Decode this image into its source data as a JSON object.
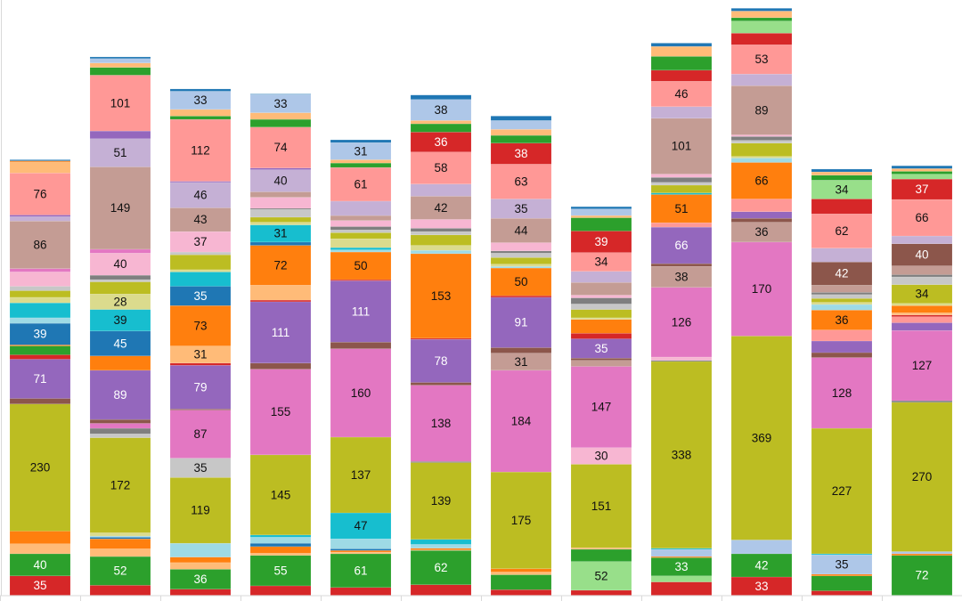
{
  "chart_data": {
    "type": "bar",
    "stacked": true,
    "title": "",
    "xlabel": "",
    "ylabel": "",
    "ylim": [
      0,
      1077
    ],
    "grid": false,
    "legend": "none",
    "label_min_value": 28,
    "palette": [
      "#1f77b4",
      "#aec7e8",
      "#ff7f0e",
      "#ffbb78",
      "#2ca02c",
      "#98df8a",
      "#d62728",
      "#ff9896",
      "#9467bd",
      "#c5b0d5",
      "#8c564b",
      "#c49c94",
      "#e377c2",
      "#f7b6d2",
      "#7f7f7f",
      "#c7c7c7",
      "#bcbd22",
      "#dbdb8d",
      "#17becf",
      "#9edae5"
    ],
    "light_label_colors": [
      "#1f77b4",
      "#2ca02c",
      "#d62728",
      "#9467bd",
      "#8c564b"
    ],
    "series_count": 47,
    "bars": [
      [
        [
          0,
          2
        ],
        [
          2,
          2
        ],
        [
          3,
          20
        ],
        [
          7,
          76
        ],
        [
          8,
          3
        ],
        [
          9,
          8
        ],
        [
          11,
          86
        ],
        [
          12,
          6
        ],
        [
          13,
          26
        ],
        [
          15,
          8
        ],
        [
          16,
          12
        ],
        [
          17,
          10
        ],
        [
          18,
          27
        ],
        [
          19,
          10
        ],
        [
          20,
          39
        ],
        [
          22,
          2
        ],
        [
          24,
          16
        ],
        [
          26,
          8
        ],
        [
          28,
          71
        ],
        [
          30,
          10
        ],
        [
          36,
          230
        ],
        [
          42,
          23
        ],
        [
          43,
          18
        ],
        [
          44,
          40
        ],
        [
          46,
          35
        ]
      ],
      [
        [
          0,
          3
        ],
        [
          1,
          8
        ],
        [
          3,
          8
        ],
        [
          4,
          14
        ],
        [
          7,
          101
        ],
        [
          8,
          14
        ],
        [
          9,
          51
        ],
        [
          11,
          149
        ],
        [
          12,
          7
        ],
        [
          13,
          40
        ],
        [
          14,
          8
        ],
        [
          15,
          4
        ],
        [
          16,
          22
        ],
        [
          17,
          28
        ],
        [
          18,
          39
        ],
        [
          20,
          45
        ],
        [
          22,
          26
        ],
        [
          28,
          89
        ],
        [
          30,
          7
        ],
        [
          32,
          9
        ],
        [
          34,
          10
        ],
        [
          35,
          7
        ],
        [
          36,
          172
        ],
        [
          37,
          6
        ],
        [
          39,
          2
        ],
        [
          40,
          3
        ],
        [
          42,
          18
        ],
        [
          43,
          14
        ],
        [
          44,
          52
        ],
        [
          46,
          18
        ]
      ],
      [
        [
          0,
          4
        ],
        [
          1,
          33
        ],
        [
          3,
          12
        ],
        [
          4,
          6
        ],
        [
          7,
          112
        ],
        [
          8,
          2
        ],
        [
          9,
          46
        ],
        [
          11,
          43
        ],
        [
          13,
          37
        ],
        [
          15,
          5
        ],
        [
          16,
          27
        ],
        [
          17,
          4
        ],
        [
          18,
          26
        ],
        [
          20,
          35
        ],
        [
          22,
          73
        ],
        [
          23,
          31
        ],
        [
          26,
          4
        ],
        [
          28,
          79
        ],
        [
          30,
          2
        ],
        [
          32,
          87
        ],
        [
          35,
          35
        ],
        [
          36,
          119
        ],
        [
          39,
          25
        ],
        [
          42,
          10
        ],
        [
          43,
          12
        ],
        [
          44,
          36
        ],
        [
          46,
          11
        ]
      ],
      [
        [
          0,
          1
        ],
        [
          1,
          33
        ],
        [
          3,
          12
        ],
        [
          4,
          14
        ],
        [
          7,
          74
        ],
        [
          8,
          3
        ],
        [
          9,
          40
        ],
        [
          11,
          10
        ],
        [
          13,
          20
        ],
        [
          14,
          2
        ],
        [
          15,
          14
        ],
        [
          16,
          9
        ],
        [
          17,
          5
        ],
        [
          18,
          31
        ],
        [
          20,
          6
        ],
        [
          22,
          72
        ],
        [
          23,
          27
        ],
        [
          26,
          3
        ],
        [
          28,
          111
        ],
        [
          30,
          11
        ],
        [
          32,
          155
        ],
        [
          36,
          145
        ],
        [
          38,
          4
        ],
        [
          39,
          11
        ],
        [
          40,
          6
        ],
        [
          42,
          12
        ],
        [
          43,
          4
        ],
        [
          44,
          55
        ],
        [
          46,
          17
        ]
      ],
      [
        [
          0,
          5
        ],
        [
          1,
          31
        ],
        [
          3,
          6
        ],
        [
          4,
          8
        ],
        [
          7,
          61
        ],
        [
          9,
          26
        ],
        [
          11,
          9
        ],
        [
          13,
          11
        ],
        [
          14,
          6
        ],
        [
          15,
          5
        ],
        [
          16,
          11
        ],
        [
          17,
          16
        ],
        [
          18,
          4
        ],
        [
          19,
          4
        ],
        [
          22,
          50
        ],
        [
          26,
          2
        ],
        [
          28,
          111
        ],
        [
          30,
          12
        ],
        [
          32,
          160
        ],
        [
          36,
          137
        ],
        [
          38,
          47
        ],
        [
          39,
          18
        ],
        [
          40,
          3
        ],
        [
          42,
          3
        ],
        [
          43,
          3
        ],
        [
          44,
          61
        ],
        [
          46,
          14
        ]
      ],
      [
        [
          0,
          8
        ],
        [
          1,
          38
        ],
        [
          3,
          6
        ],
        [
          4,
          15
        ],
        [
          6,
          36
        ],
        [
          7,
          58
        ],
        [
          9,
          22
        ],
        [
          11,
          42
        ],
        [
          13,
          16
        ],
        [
          14,
          6
        ],
        [
          15,
          6
        ],
        [
          16,
          19
        ],
        [
          17,
          9
        ],
        [
          19,
          6
        ],
        [
          22,
          153
        ],
        [
          26,
          2
        ],
        [
          28,
          78
        ],
        [
          30,
          5
        ],
        [
          32,
          138
        ],
        [
          34,
          2
        ],
        [
          36,
          139
        ],
        [
          38,
          9
        ],
        [
          39,
          7
        ],
        [
          42,
          3
        ],
        [
          43,
          1
        ],
        [
          44,
          62
        ],
        [
          46,
          19
        ]
      ],
      [
        [
          0,
          8
        ],
        [
          1,
          16
        ],
        [
          3,
          11
        ],
        [
          4,
          14
        ],
        [
          6,
          38
        ],
        [
          7,
          63
        ],
        [
          9,
          35
        ],
        [
          11,
          44
        ],
        [
          13,
          15
        ],
        [
          14,
          4
        ],
        [
          15,
          8
        ],
        [
          16,
          12
        ],
        [
          17,
          4
        ],
        [
          19,
          3
        ],
        [
          22,
          50
        ],
        [
          26,
          3
        ],
        [
          28,
          91
        ],
        [
          30,
          10
        ],
        [
          31,
          31
        ],
        [
          32,
          184
        ],
        [
          36,
          175
        ],
        [
          42,
          6
        ],
        [
          43,
          5
        ],
        [
          44,
          27
        ],
        [
          46,
          10
        ]
      ],
      [
        [
          0,
          4
        ],
        [
          1,
          12
        ],
        [
          3,
          4
        ],
        [
          4,
          24
        ],
        [
          6,
          39
        ],
        [
          7,
          34
        ],
        [
          9,
          20
        ],
        [
          11,
          23
        ],
        [
          13,
          5
        ],
        [
          14,
          11
        ],
        [
          15,
          10
        ],
        [
          16,
          15
        ],
        [
          17,
          3
        ],
        [
          22,
          25
        ],
        [
          26,
          10
        ],
        [
          28,
          35
        ],
        [
          30,
          4
        ],
        [
          31,
          11
        ],
        [
          32,
          147
        ],
        [
          33,
          30
        ],
        [
          36,
          151
        ],
        [
          43,
          3
        ],
        [
          44,
          22
        ],
        [
          45,
          52
        ],
        [
          46,
          9
        ]
      ],
      [
        [
          0,
          6
        ],
        [
          3,
          18
        ],
        [
          4,
          25
        ],
        [
          6,
          20
        ],
        [
          7,
          46
        ],
        [
          9,
          21
        ],
        [
          11,
          101
        ],
        [
          13,
          6
        ],
        [
          14,
          9
        ],
        [
          15,
          5
        ],
        [
          16,
          14
        ],
        [
          18,
          3
        ],
        [
          22,
          51
        ],
        [
          27,
          8
        ],
        [
          28,
          66
        ],
        [
          30,
          5
        ],
        [
          31,
          38
        ],
        [
          32,
          126
        ],
        [
          33,
          6
        ],
        [
          34,
          2
        ],
        [
          36,
          338
        ],
        [
          38,
          2
        ],
        [
          41,
          13
        ],
        [
          42,
          2
        ],
        [
          44,
          33
        ],
        [
          45,
          11
        ],
        [
          46,
          24
        ]
      ],
      [
        [
          0,
          5
        ],
        [
          3,
          12
        ],
        [
          4,
          6
        ],
        [
          5,
          22
        ],
        [
          6,
          21
        ],
        [
          7,
          53
        ],
        [
          9,
          21
        ],
        [
          11,
          89
        ],
        [
          13,
          3
        ],
        [
          14,
          7
        ],
        [
          15,
          5
        ],
        [
          16,
          24
        ],
        [
          17,
          3
        ],
        [
          19,
          8
        ],
        [
          22,
          66
        ],
        [
          27,
          23
        ],
        [
          28,
          12
        ],
        [
          30,
          7
        ],
        [
          31,
          36
        ],
        [
          32,
          170
        ],
        [
          36,
          369
        ],
        [
          41,
          25
        ],
        [
          44,
          42
        ],
        [
          46,
          33
        ]
      ],
      [
        [
          0,
          5
        ],
        [
          3,
          6
        ],
        [
          4,
          9
        ],
        [
          5,
          34
        ],
        [
          6,
          27
        ],
        [
          7,
          62
        ],
        [
          9,
          25
        ],
        [
          10,
          42
        ],
        [
          11,
          13
        ],
        [
          14,
          4
        ],
        [
          15,
          7
        ],
        [
          16,
          7
        ],
        [
          17,
          4
        ],
        [
          19,
          10
        ],
        [
          22,
          36
        ],
        [
          27,
          20
        ],
        [
          28,
          21
        ],
        [
          30,
          9
        ],
        [
          32,
          128
        ],
        [
          36,
          227
        ],
        [
          38,
          2
        ],
        [
          41,
          35
        ],
        [
          42,
          3
        ],
        [
          44,
          27
        ],
        [
          46,
          8
        ]
      ],
      [
        [
          0,
          5
        ],
        [
          3,
          5
        ],
        [
          4,
          5
        ],
        [
          5,
          9
        ],
        [
          6,
          37
        ],
        [
          7,
          66
        ],
        [
          9,
          14
        ],
        [
          10,
          40
        ],
        [
          11,
          16
        ],
        [
          14,
          4
        ],
        [
          15,
          14
        ],
        [
          16,
          34
        ],
        [
          17,
          4
        ],
        [
          22,
          13
        ],
        [
          23,
          4
        ],
        [
          26,
          3
        ],
        [
          27,
          11
        ],
        [
          28,
          14
        ],
        [
          32,
          127
        ],
        [
          34,
          3
        ],
        [
          36,
          270
        ],
        [
          41,
          4
        ],
        [
          42,
          3
        ],
        [
          44,
          72
        ]
      ]
    ]
  }
}
